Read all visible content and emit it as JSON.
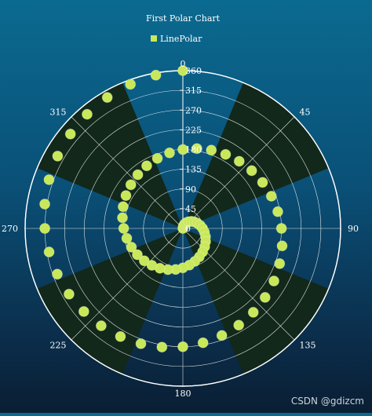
{
  "chart_data": {
    "type": "scatter",
    "subtype": "polar",
    "title": "First Polar Chart",
    "legend": [
      "LinePolar"
    ],
    "legend_placement": "top-center",
    "angle_axis": {
      "ticks": [
        0,
        45,
        90,
        135,
        180,
        225,
        270,
        315
      ],
      "clockwise": true,
      "zero_at": "top",
      "alternating_sector_fill": true
    },
    "radial_axis": {
      "range": [
        0,
        360
      ],
      "ticks": [
        0,
        45,
        90,
        135,
        180,
        225,
        270,
        315,
        360
      ],
      "grid": true
    },
    "series": [
      {
        "name": "LinePolar",
        "color": "#c8e85a",
        "angles": [
          0,
          10,
          20,
          30,
          40,
          50,
          60,
          70,
          80,
          90,
          100,
          110,
          120,
          130,
          140,
          150,
          160,
          170,
          180,
          190,
          200,
          210,
          220,
          230,
          240,
          250,
          260,
          270,
          280,
          290,
          300,
          310,
          320,
          330,
          340,
          350,
          360,
          370,
          380,
          390,
          400,
          410,
          420,
          430,
          440,
          450,
          460,
          470,
          480,
          490,
          500,
          510,
          520,
          530,
          540,
          550,
          560,
          570,
          580,
          590,
          600,
          610,
          620,
          630,
          640,
          650,
          660,
          670,
          680,
          690,
          700,
          710,
          720
        ],
        "radii": [
          0,
          5,
          10,
          15,
          20,
          25,
          30,
          35,
          40,
          45,
          50,
          55,
          60,
          65,
          70,
          75,
          80,
          85,
          90,
          95,
          100,
          105,
          110,
          115,
          120,
          125,
          130,
          135,
          140,
          145,
          150,
          155,
          160,
          165,
          170,
          175,
          180,
          185,
          190,
          195,
          200,
          205,
          210,
          215,
          220,
          225,
          230,
          235,
          240,
          245,
          250,
          255,
          260,
          265,
          270,
          275,
          280,
          285,
          290,
          295,
          300,
          305,
          310,
          315,
          320,
          325,
          330,
          335,
          340,
          345,
          350,
          355,
          360
        ]
      }
    ],
    "colors": {
      "background_top": "#0b6a90",
      "background_bottom": "#0a1e33",
      "sector_fill": "#12281a",
      "grid": "#ffffff",
      "marker": "#c8e85a",
      "text": "#ffffff"
    }
  },
  "watermark": "CSDN @gdizcm"
}
